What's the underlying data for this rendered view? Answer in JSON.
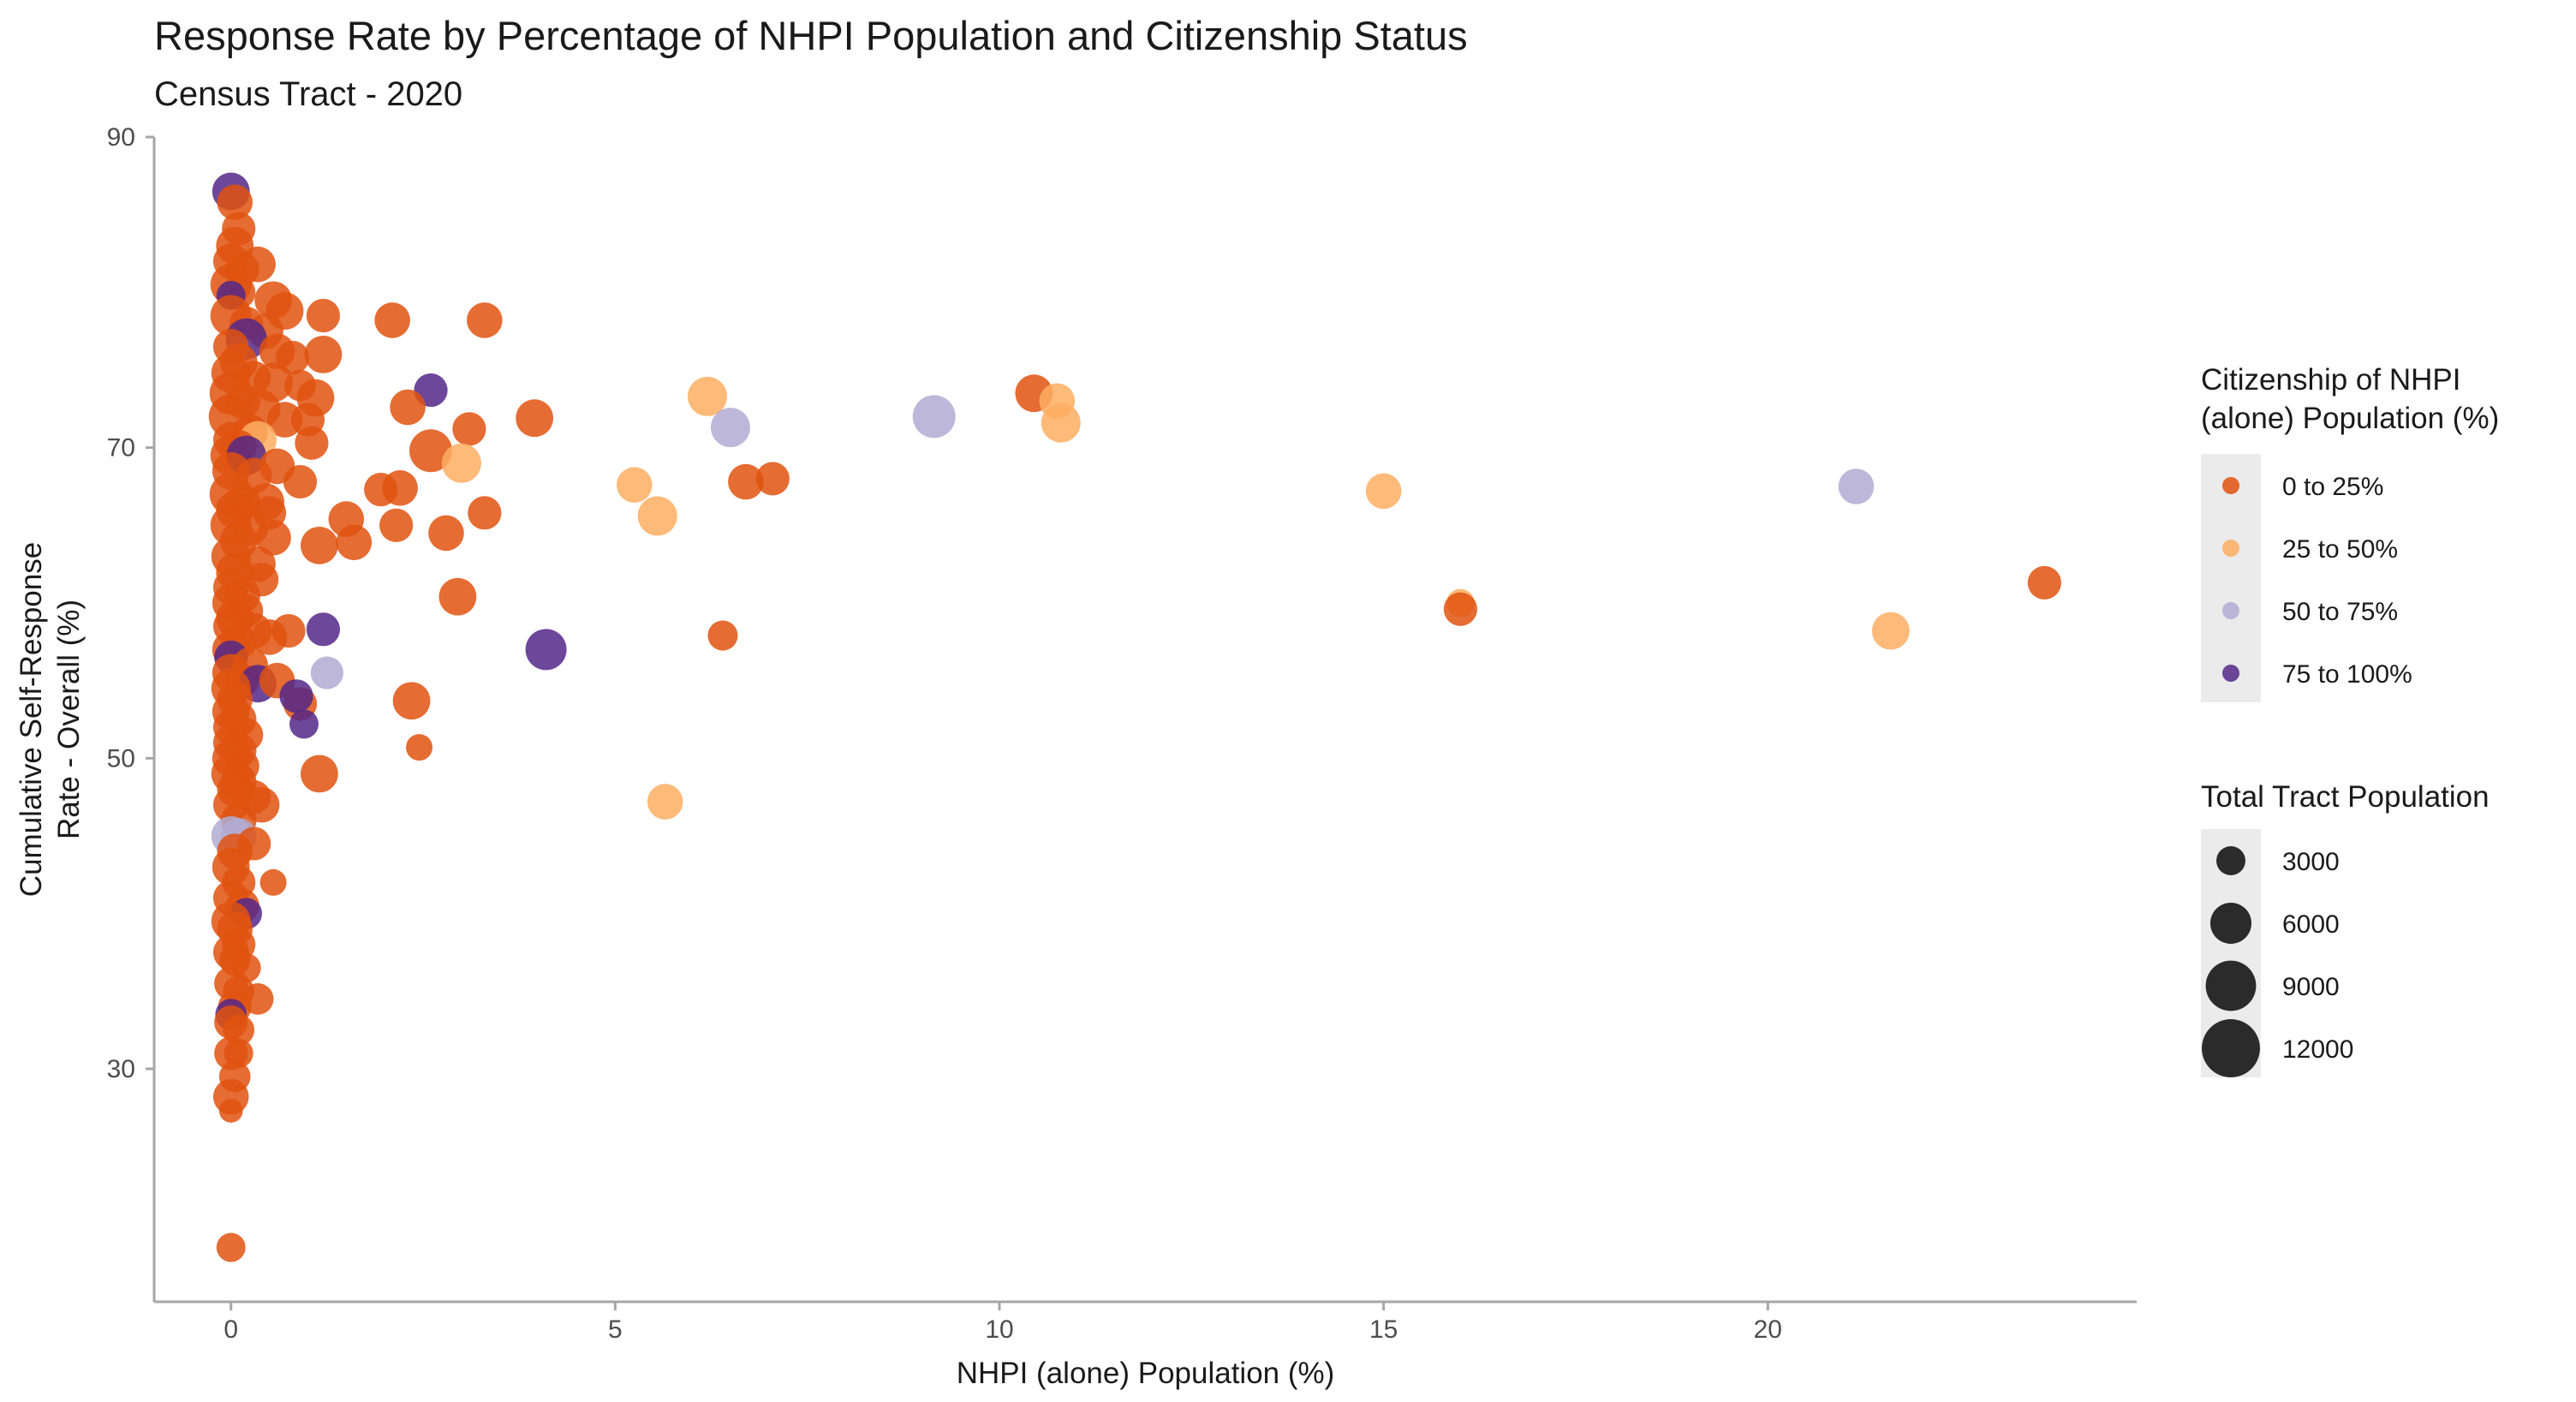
{
  "chart_data": {
    "type": "scatter",
    "title": "Response Rate by Percentage of NHPI Population and Citizenship Status",
    "subtitle": "Census Tract - 2020",
    "xlabel": "NHPI (alone) Population (%)",
    "ylabel_lines": [
      "Cumulative Self-Response",
      "Rate - Overall (%)"
    ],
    "xlim": [
      -1,
      24.8
    ],
    "ylim": [
      15,
      90
    ],
    "x_ticks": [
      0,
      5,
      10,
      15,
      20
    ],
    "x_tick_labels": [
      "0",
      "5",
      "10",
      "15",
      "20"
    ],
    "y_ticks": [
      30,
      50,
      70,
      90
    ],
    "y_tick_labels": [
      "30",
      "50",
      "70",
      "90"
    ],
    "grid": false,
    "legend_position": "right",
    "color_legend": {
      "title_lines": [
        "Citizenship of NHPI",
        "(alone) Population (%)"
      ],
      "items": [
        {
          "label": "0 to 25%",
          "color": "#E0520F",
          "opacity": 0.85
        },
        {
          "label": "25 to 50%",
          "color": "#FDAE61",
          "opacity": 0.85
        },
        {
          "label": "50 to 75%",
          "color": "#B2ABD2",
          "opacity": 0.85
        },
        {
          "label": "75 to 100%",
          "color": "#542788",
          "opacity": 0.85
        }
      ]
    },
    "size_legend": {
      "title": "Total Tract Population",
      "items": [
        {
          "label": "3000",
          "value": 3000
        },
        {
          "label": "6000",
          "value": 6000
        },
        {
          "label": "9000",
          "value": 9000
        },
        {
          "label": "12000",
          "value": 12000
        }
      ]
    },
    "points": [
      {
        "x": 0.0,
        "y": 86.5,
        "pop": 5000,
        "cat": 3
      },
      {
        "x": 0.05,
        "y": 85.8,
        "pop": 4500,
        "cat": 0
      },
      {
        "x": 0.1,
        "y": 84.1,
        "pop": 4000,
        "cat": 0
      },
      {
        "x": 0.05,
        "y": 83.0,
        "pop": 5000,
        "cat": 0
      },
      {
        "x": 0.0,
        "y": 82.0,
        "pop": 4500,
        "cat": 0
      },
      {
        "x": 0.15,
        "y": 81.5,
        "pop": 4000,
        "cat": 0
      },
      {
        "x": 0.35,
        "y": 81.8,
        "pop": 4500,
        "cat": 0
      },
      {
        "x": 0.0,
        "y": 80.5,
        "pop": 6000,
        "cat": 0
      },
      {
        "x": 0.1,
        "y": 80.0,
        "pop": 4000,
        "cat": 0
      },
      {
        "x": 0.0,
        "y": 79.8,
        "pop": 3000,
        "cat": 3
      },
      {
        "x": 0.55,
        "y": 79.5,
        "pop": 5000,
        "cat": 0
      },
      {
        "x": 0.7,
        "y": 78.8,
        "pop": 5000,
        "cat": 0
      },
      {
        "x": 0.0,
        "y": 78.5,
        "pop": 6000,
        "cat": 0
      },
      {
        "x": 0.2,
        "y": 78.0,
        "pop": 4000,
        "cat": 0
      },
      {
        "x": 0.45,
        "y": 77.5,
        "pop": 4500,
        "cat": 0
      },
      {
        "x": 0.2,
        "y": 77.0,
        "pop": 6000,
        "cat": 3
      },
      {
        "x": 0.0,
        "y": 76.5,
        "pop": 4500,
        "cat": 0
      },
      {
        "x": 0.6,
        "y": 76.2,
        "pop": 4500,
        "cat": 0
      },
      {
        "x": 0.8,
        "y": 75.8,
        "pop": 4000,
        "cat": 0
      },
      {
        "x": 0.1,
        "y": 75.5,
        "pop": 5000,
        "cat": 0
      },
      {
        "x": 0.0,
        "y": 74.8,
        "pop": 5500,
        "cat": 0
      },
      {
        "x": 0.3,
        "y": 74.5,
        "pop": 4000,
        "cat": 0
      },
      {
        "x": 0.55,
        "y": 74.2,
        "pop": 5500,
        "cat": 0
      },
      {
        "x": 0.9,
        "y": 74.0,
        "pop": 3500,
        "cat": 0
      },
      {
        "x": 0.0,
        "y": 73.5,
        "pop": 6500,
        "cat": 0
      },
      {
        "x": 0.15,
        "y": 73.0,
        "pop": 4500,
        "cat": 0
      },
      {
        "x": 1.1,
        "y": 73.2,
        "pop": 5000,
        "cat": 0
      },
      {
        "x": 0.4,
        "y": 72.5,
        "pop": 5000,
        "cat": 0
      },
      {
        "x": 0.0,
        "y": 72.0,
        "pop": 7000,
        "cat": 0
      },
      {
        "x": 0.7,
        "y": 71.8,
        "pop": 4500,
        "cat": 0
      },
      {
        "x": 1.0,
        "y": 71.8,
        "pop": 4000,
        "cat": 0
      },
      {
        "x": 0.25,
        "y": 71.0,
        "pop": 4500,
        "cat": 0
      },
      {
        "x": 0.0,
        "y": 70.5,
        "pop": 4500,
        "cat": 0
      },
      {
        "x": 0.35,
        "y": 70.5,
        "pop": 5000,
        "cat": 1
      },
      {
        "x": 1.05,
        "y": 70.3,
        "pop": 4000,
        "cat": 0
      },
      {
        "x": 0.1,
        "y": 70.0,
        "pop": 4500,
        "cat": 0
      },
      {
        "x": 0.0,
        "y": 69.5,
        "pop": 6000,
        "cat": 0
      },
      {
        "x": 0.2,
        "y": 69.5,
        "pop": 5500,
        "cat": 3
      },
      {
        "x": 0.6,
        "y": 68.8,
        "pop": 4500,
        "cat": 0
      },
      {
        "x": 0.0,
        "y": 68.5,
        "pop": 5000,
        "cat": 0
      },
      {
        "x": 0.3,
        "y": 68.2,
        "pop": 4500,
        "cat": 0
      },
      {
        "x": 0.9,
        "y": 67.8,
        "pop": 4000,
        "cat": 0
      },
      {
        "x": 0.0,
        "y": 67.0,
        "pop": 6500,
        "cat": 0
      },
      {
        "x": 0.15,
        "y": 66.5,
        "pop": 4500,
        "cat": 0
      },
      {
        "x": 0.45,
        "y": 66.5,
        "pop": 5000,
        "cat": 0
      },
      {
        "x": 0.05,
        "y": 66.0,
        "pop": 5000,
        "cat": 0
      },
      {
        "x": 0.5,
        "y": 65.8,
        "pop": 4000,
        "cat": 0
      },
      {
        "x": 0.0,
        "y": 65.0,
        "pop": 6000,
        "cat": 0
      },
      {
        "x": 0.25,
        "y": 64.8,
        "pop": 4500,
        "cat": 0
      },
      {
        "x": 0.55,
        "y": 64.2,
        "pop": 4500,
        "cat": 0
      },
      {
        "x": 0.1,
        "y": 64.0,
        "pop": 5000,
        "cat": 0
      },
      {
        "x": 0.0,
        "y": 63.0,
        "pop": 5500,
        "cat": 0
      },
      {
        "x": 0.35,
        "y": 62.5,
        "pop": 4500,
        "cat": 0
      },
      {
        "x": 0.05,
        "y": 62.0,
        "pop": 5000,
        "cat": 0
      },
      {
        "x": 0.4,
        "y": 61.5,
        "pop": 4000,
        "cat": 0
      },
      {
        "x": 0.0,
        "y": 61.0,
        "pop": 4500,
        "cat": 0
      },
      {
        "x": 0.15,
        "y": 60.5,
        "pop": 4500,
        "cat": 0
      },
      {
        "x": 0.0,
        "y": 60.0,
        "pop": 5000,
        "cat": 0
      },
      {
        "x": 0.2,
        "y": 59.5,
        "pop": 4000,
        "cat": 0
      },
      {
        "x": 0.05,
        "y": 59.0,
        "pop": 5000,
        "cat": 0
      },
      {
        "x": 0.0,
        "y": 58.5,
        "pop": 4500,
        "cat": 0
      },
      {
        "x": 0.3,
        "y": 58.2,
        "pop": 4500,
        "cat": 0
      },
      {
        "x": 0.5,
        "y": 57.8,
        "pop": 4500,
        "cat": 0
      },
      {
        "x": 0.75,
        "y": 58.2,
        "pop": 4000,
        "cat": 0
      },
      {
        "x": 0.1,
        "y": 57.5,
        "pop": 4500,
        "cat": 0
      },
      {
        "x": 0.0,
        "y": 57.0,
        "pop": 5000,
        "cat": 0
      },
      {
        "x": 0.0,
        "y": 56.5,
        "pop": 4000,
        "cat": 3
      },
      {
        "x": 0.25,
        "y": 56.0,
        "pop": 4500,
        "cat": 0
      },
      {
        "x": 0.0,
        "y": 55.5,
        "pop": 5000,
        "cat": 0
      },
      {
        "x": 0.15,
        "y": 55.0,
        "pop": 4000,
        "cat": 0
      },
      {
        "x": 0.35,
        "y": 54.8,
        "pop": 5000,
        "cat": 3
      },
      {
        "x": 0.6,
        "y": 55.0,
        "pop": 4500,
        "cat": 0
      },
      {
        "x": 0.0,
        "y": 54.5,
        "pop": 5500,
        "cat": 0
      },
      {
        "x": 0.05,
        "y": 53.8,
        "pop": 4500,
        "cat": 0
      },
      {
        "x": 0.9,
        "y": 53.5,
        "pop": 4000,
        "cat": 0
      },
      {
        "x": 0.0,
        "y": 53.0,
        "pop": 5000,
        "cat": 0
      },
      {
        "x": 0.1,
        "y": 52.5,
        "pop": 4500,
        "cat": 0
      },
      {
        "x": 0.0,
        "y": 52.0,
        "pop": 4500,
        "cat": 0
      },
      {
        "x": 0.2,
        "y": 51.5,
        "pop": 4000,
        "cat": 0
      },
      {
        "x": 0.0,
        "y": 51.0,
        "pop": 4500,
        "cat": 0
      },
      {
        "x": 0.1,
        "y": 50.5,
        "pop": 4500,
        "cat": 0
      },
      {
        "x": 0.0,
        "y": 50.0,
        "pop": 5000,
        "cat": 0
      },
      {
        "x": 0.15,
        "y": 49.5,
        "pop": 4000,
        "cat": 0
      },
      {
        "x": 0.0,
        "y": 49.0,
        "pop": 5500,
        "cat": 0
      },
      {
        "x": 0.1,
        "y": 48.5,
        "pop": 4500,
        "cat": 0
      },
      {
        "x": 0.05,
        "y": 48.0,
        "pop": 4500,
        "cat": 0
      },
      {
        "x": 0.3,
        "y": 47.5,
        "pop": 4000,
        "cat": 0
      },
      {
        "x": 0.4,
        "y": 47.0,
        "pop": 4500,
        "cat": 0
      },
      {
        "x": 0.0,
        "y": 47.0,
        "pop": 4500,
        "cat": 0
      },
      {
        "x": 0.1,
        "y": 46.0,
        "pop": 4500,
        "cat": 0
      },
      {
        "x": 0.0,
        "y": 45.0,
        "pop": 5500,
        "cat": 2
      },
      {
        "x": 0.1,
        "y": 45.0,
        "pop": 4500,
        "cat": 2
      },
      {
        "x": 0.3,
        "y": 44.5,
        "pop": 4000,
        "cat": 0
      },
      {
        "x": 0.05,
        "y": 44.0,
        "pop": 4500,
        "cat": 0
      },
      {
        "x": 0.0,
        "y": 43.0,
        "pop": 5000,
        "cat": 0
      },
      {
        "x": 0.1,
        "y": 42.0,
        "pop": 4000,
        "cat": 0
      },
      {
        "x": 0.55,
        "y": 42.0,
        "pop": 2500,
        "cat": 0
      },
      {
        "x": 0.0,
        "y": 41.0,
        "pop": 4500,
        "cat": 0
      },
      {
        "x": 0.15,
        "y": 40.5,
        "pop": 4000,
        "cat": 0
      },
      {
        "x": 0.2,
        "y": 40.0,
        "pop": 3500,
        "cat": 3
      },
      {
        "x": 0.0,
        "y": 39.5,
        "pop": 5500,
        "cat": 0
      },
      {
        "x": 0.05,
        "y": 39.0,
        "pop": 4500,
        "cat": 0
      },
      {
        "x": 0.1,
        "y": 38.0,
        "pop": 4000,
        "cat": 0
      },
      {
        "x": 0.0,
        "y": 37.5,
        "pop": 4500,
        "cat": 0
      },
      {
        "x": 0.05,
        "y": 37.0,
        "pop": 3500,
        "cat": 0
      },
      {
        "x": 0.2,
        "y": 36.5,
        "pop": 3000,
        "cat": 0
      },
      {
        "x": 0.0,
        "y": 35.5,
        "pop": 4000,
        "cat": 0
      },
      {
        "x": 0.1,
        "y": 35.0,
        "pop": 3500,
        "cat": 0
      },
      {
        "x": 0.35,
        "y": 34.5,
        "pop": 3500,
        "cat": 0
      },
      {
        "x": 0.05,
        "y": 34.0,
        "pop": 4000,
        "cat": 0
      },
      {
        "x": 0.0,
        "y": 33.5,
        "pop": 3500,
        "cat": 3
      },
      {
        "x": 0.0,
        "y": 33.0,
        "pop": 4000,
        "cat": 0
      },
      {
        "x": 0.1,
        "y": 32.5,
        "pop": 3500,
        "cat": 0
      },
      {
        "x": 0.0,
        "y": 31.0,
        "pop": 4000,
        "cat": 0
      },
      {
        "x": 0.1,
        "y": 31.0,
        "pop": 3000,
        "cat": 0
      },
      {
        "x": 0.05,
        "y": 29.5,
        "pop": 3500,
        "cat": 0
      },
      {
        "x": 0.0,
        "y": 28.2,
        "pop": 4500,
        "cat": 0
      },
      {
        "x": 0.0,
        "y": 27.3,
        "pop": 2000,
        "cat": 0
      },
      {
        "x": 0.0,
        "y": 18.5,
        "pop": 3000,
        "cat": 0
      },
      {
        "x": 1.2,
        "y": 78.5,
        "pop": 4000,
        "cat": 0
      },
      {
        "x": 1.2,
        "y": 76.0,
        "pop": 5000,
        "cat": 0
      },
      {
        "x": 2.1,
        "y": 78.2,
        "pop": 4500,
        "cat": 0
      },
      {
        "x": 3.3,
        "y": 78.2,
        "pop": 4500,
        "cat": 0
      },
      {
        "x": 2.6,
        "y": 73.7,
        "pop": 4000,
        "cat": 3
      },
      {
        "x": 2.3,
        "y": 72.6,
        "pop": 4500,
        "cat": 0
      },
      {
        "x": 3.1,
        "y": 71.2,
        "pop": 4000,
        "cat": 0
      },
      {
        "x": 3.95,
        "y": 71.9,
        "pop": 5000,
        "cat": 0
      },
      {
        "x": 2.6,
        "y": 69.8,
        "pop": 6500,
        "cat": 0
      },
      {
        "x": 3.0,
        "y": 69.0,
        "pop": 5500,
        "cat": 1
      },
      {
        "x": 1.95,
        "y": 67.3,
        "pop": 4000,
        "cat": 0
      },
      {
        "x": 2.2,
        "y": 67.4,
        "pop": 4500,
        "cat": 0
      },
      {
        "x": 1.5,
        "y": 65.4,
        "pop": 4500,
        "cat": 0
      },
      {
        "x": 2.15,
        "y": 65.0,
        "pop": 4000,
        "cat": 0
      },
      {
        "x": 2.8,
        "y": 64.5,
        "pop": 4500,
        "cat": 0
      },
      {
        "x": 3.3,
        "y": 65.8,
        "pop": 4000,
        "cat": 0
      },
      {
        "x": 1.15,
        "y": 63.7,
        "pop": 5000,
        "cat": 0
      },
      {
        "x": 1.6,
        "y": 63.9,
        "pop": 4500,
        "cat": 0
      },
      {
        "x": 2.95,
        "y": 60.4,
        "pop": 5000,
        "cat": 0
      },
      {
        "x": 1.2,
        "y": 58.3,
        "pop": 4000,
        "cat": 3
      },
      {
        "x": 1.25,
        "y": 55.5,
        "pop": 3800,
        "cat": 2
      },
      {
        "x": 0.85,
        "y": 54.0,
        "pop": 4000,
        "cat": 3
      },
      {
        "x": 0.95,
        "y": 52.2,
        "pop": 3000,
        "cat": 3
      },
      {
        "x": 2.35,
        "y": 53.7,
        "pop": 5000,
        "cat": 0
      },
      {
        "x": 2.45,
        "y": 50.7,
        "pop": 2500,
        "cat": 0
      },
      {
        "x": 1.15,
        "y": 49.0,
        "pop": 5000,
        "cat": 0
      },
      {
        "x": 4.1,
        "y": 57.0,
        "pop": 6000,
        "cat": 3
      },
      {
        "x": 5.25,
        "y": 67.6,
        "pop": 4500,
        "cat": 1
      },
      {
        "x": 5.55,
        "y": 65.6,
        "pop": 5500,
        "cat": 1
      },
      {
        "x": 6.2,
        "y": 73.3,
        "pop": 5500,
        "cat": 1
      },
      {
        "x": 6.5,
        "y": 71.3,
        "pop": 5500,
        "cat": 2
      },
      {
        "x": 6.7,
        "y": 67.8,
        "pop": 4500,
        "cat": 0
      },
      {
        "x": 7.05,
        "y": 68.0,
        "pop": 4000,
        "cat": 0
      },
      {
        "x": 6.4,
        "y": 57.9,
        "pop": 3200,
        "cat": 0
      },
      {
        "x": 5.65,
        "y": 47.2,
        "pop": 4500,
        "cat": 1
      },
      {
        "x": 9.15,
        "y": 72.0,
        "pop": 6500,
        "cat": 2
      },
      {
        "x": 10.45,
        "y": 73.5,
        "pop": 5000,
        "cat": 0
      },
      {
        "x": 10.75,
        "y": 73.0,
        "pop": 4500,
        "cat": 1
      },
      {
        "x": 10.8,
        "y": 71.6,
        "pop": 5500,
        "cat": 1
      },
      {
        "x": 15.0,
        "y": 67.2,
        "pop": 4500,
        "cat": 1
      },
      {
        "x": 16.0,
        "y": 60.0,
        "pop": 2800,
        "cat": 1
      },
      {
        "x": 16.0,
        "y": 59.6,
        "pop": 4000,
        "cat": 0
      },
      {
        "x": 21.15,
        "y": 67.5,
        "pop": 4500,
        "cat": 2
      },
      {
        "x": 21.6,
        "y": 58.2,
        "pop": 5000,
        "cat": 1
      },
      {
        "x": 23.6,
        "y": 61.3,
        "pop": 4000,
        "cat": 0
      }
    ]
  }
}
